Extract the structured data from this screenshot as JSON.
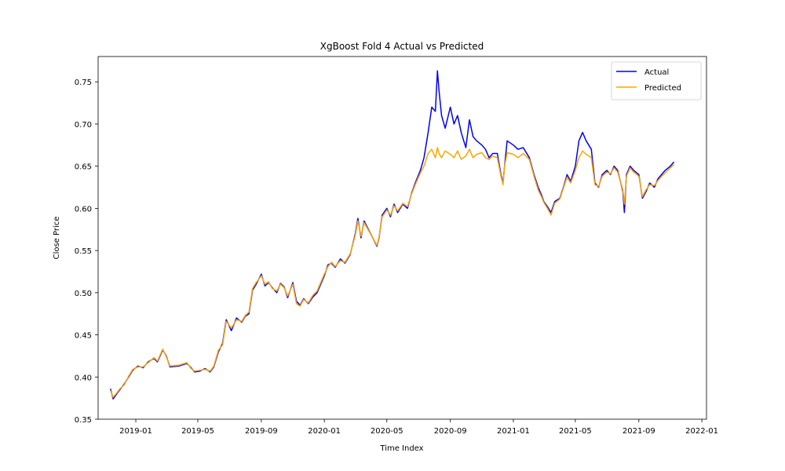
{
  "chart_data": {
    "type": "line",
    "title": "XgBoost Fold 4 Actual vs Predicted",
    "xlabel": "Time Index",
    "ylabel": "Close Price",
    "xlim": [
      "2018-10-20",
      "2022-01-10"
    ],
    "ylim": [
      0.35,
      0.78
    ],
    "x_ticks": [
      "2019-01",
      "2019-05",
      "2019-09",
      "2020-01",
      "2020-05",
      "2020-09",
      "2021-01",
      "2021-05",
      "2021-09",
      "2022-01"
    ],
    "y_ticks": [
      "0.35",
      "0.40",
      "0.45",
      "0.50",
      "0.55",
      "0.60",
      "0.65",
      "0.70",
      "0.75"
    ],
    "grid": false,
    "legend_position": "top-right",
    "series": [
      {
        "name": "Actual",
        "color": "#0000ff",
        "points": [
          [
            "2018-11-13",
            0.386
          ],
          [
            "2018-11-18",
            0.374
          ],
          [
            "2018-11-25",
            0.38
          ],
          [
            "2018-12-01",
            0.385
          ],
          [
            "2018-12-10",
            0.392
          ],
          [
            "2018-12-18",
            0.4
          ],
          [
            "2018-12-26",
            0.408
          ],
          [
            "2019-01-05",
            0.413
          ],
          [
            "2019-01-15",
            0.411
          ],
          [
            "2019-01-25",
            0.418
          ],
          [
            "2019-02-05",
            0.422
          ],
          [
            "2019-02-12",
            0.418
          ],
          [
            "2019-02-22",
            0.432
          ],
          [
            "2019-03-01",
            0.425
          ],
          [
            "2019-03-08",
            0.412
          ],
          [
            "2019-03-25",
            0.413
          ],
          [
            "2019-04-10",
            0.416
          ],
          [
            "2019-04-18",
            0.411
          ],
          [
            "2019-04-25",
            0.406
          ],
          [
            "2019-05-05",
            0.407
          ],
          [
            "2019-05-15",
            0.41
          ],
          [
            "2019-05-25",
            0.406
          ],
          [
            "2019-06-01",
            0.412
          ],
          [
            "2019-06-10",
            0.43
          ],
          [
            "2019-06-18",
            0.44
          ],
          [
            "2019-06-25",
            0.468
          ],
          [
            "2019-07-05",
            0.455
          ],
          [
            "2019-07-15",
            0.47
          ],
          [
            "2019-07-25",
            0.465
          ],
          [
            "2019-08-01",
            0.472
          ],
          [
            "2019-08-08",
            0.475
          ],
          [
            "2019-08-15",
            0.503
          ],
          [
            "2019-08-22",
            0.51
          ],
          [
            "2019-09-01",
            0.522
          ],
          [
            "2019-09-08",
            0.508
          ],
          [
            "2019-09-15",
            0.512
          ],
          [
            "2019-09-22",
            0.506
          ],
          [
            "2019-10-01",
            0.5
          ],
          [
            "2019-10-08",
            0.511
          ],
          [
            "2019-10-15",
            0.507
          ],
          [
            "2019-10-22",
            0.494
          ],
          [
            "2019-11-01",
            0.512
          ],
          [
            "2019-11-08",
            0.49
          ],
          [
            "2019-11-15",
            0.485
          ],
          [
            "2019-11-22",
            0.493
          ],
          [
            "2019-12-01",
            0.487
          ],
          [
            "2019-12-10",
            0.495
          ],
          [
            "2019-12-18",
            0.5
          ],
          [
            "2020-01-01",
            0.52
          ],
          [
            "2020-01-08",
            0.533
          ],
          [
            "2020-01-15",
            0.535
          ],
          [
            "2020-01-22",
            0.53
          ],
          [
            "2020-02-01",
            0.54
          ],
          [
            "2020-02-10",
            0.535
          ],
          [
            "2020-02-20",
            0.545
          ],
          [
            "2020-03-01",
            0.57
          ],
          [
            "2020-03-06",
            0.588
          ],
          [
            "2020-03-12",
            0.565
          ],
          [
            "2020-03-18",
            0.585
          ],
          [
            "2020-04-12",
            0.555
          ],
          [
            "2020-04-16",
            0.565
          ],
          [
            "2020-04-22",
            0.592
          ],
          [
            "2020-05-01",
            0.6
          ],
          [
            "2020-05-08",
            0.59
          ],
          [
            "2020-05-15",
            0.605
          ],
          [
            "2020-05-22",
            0.595
          ],
          [
            "2020-06-01",
            0.605
          ],
          [
            "2020-06-10",
            0.6
          ],
          [
            "2020-06-18",
            0.618
          ],
          [
            "2020-06-25",
            0.63
          ],
          [
            "2020-07-05",
            0.645
          ],
          [
            "2020-07-12",
            0.66
          ],
          [
            "2020-07-20",
            0.69
          ],
          [
            "2020-07-27",
            0.72
          ],
          [
            "2020-08-03",
            0.715
          ],
          [
            "2020-08-07",
            0.763
          ],
          [
            "2020-08-10",
            0.74
          ],
          [
            "2020-08-15",
            0.71
          ],
          [
            "2020-08-22",
            0.695
          ],
          [
            "2020-09-01",
            0.72
          ],
          [
            "2020-09-08",
            0.7
          ],
          [
            "2020-09-15",
            0.71
          ],
          [
            "2020-09-22",
            0.69
          ],
          [
            "2020-10-01",
            0.672
          ],
          [
            "2020-10-08",
            0.705
          ],
          [
            "2020-10-15",
            0.685
          ],
          [
            "2020-10-22",
            0.68
          ],
          [
            "2020-11-01",
            0.675
          ],
          [
            "2020-11-08",
            0.67
          ],
          [
            "2020-11-15",
            0.66
          ],
          [
            "2020-11-22",
            0.665
          ],
          [
            "2020-12-01",
            0.665
          ],
          [
            "2020-12-08",
            0.64
          ],
          [
            "2020-12-12",
            0.63
          ],
          [
            "2020-12-15",
            0.65
          ],
          [
            "2020-12-20",
            0.68
          ],
          [
            "2021-01-01",
            0.675
          ],
          [
            "2021-01-10",
            0.67
          ],
          [
            "2021-01-20",
            0.672
          ],
          [
            "2021-02-01",
            0.66
          ],
          [
            "2021-02-10",
            0.64
          ],
          [
            "2021-02-18",
            0.625
          ],
          [
            "2021-02-25",
            0.615
          ],
          [
            "2021-03-01",
            0.608
          ],
          [
            "2021-03-08",
            0.602
          ],
          [
            "2021-03-15",
            0.595
          ],
          [
            "2021-03-22",
            0.608
          ],
          [
            "2021-04-01",
            0.612
          ],
          [
            "2021-04-08",
            0.625
          ],
          [
            "2021-04-15",
            0.64
          ],
          [
            "2021-04-22",
            0.632
          ],
          [
            "2021-05-01",
            0.65
          ],
          [
            "2021-05-08",
            0.68
          ],
          [
            "2021-05-15",
            0.69
          ],
          [
            "2021-05-22",
            0.68
          ],
          [
            "2021-06-01",
            0.67
          ],
          [
            "2021-06-08",
            0.63
          ],
          [
            "2021-06-15",
            0.625
          ],
          [
            "2021-06-22",
            0.64
          ],
          [
            "2021-07-01",
            0.645
          ],
          [
            "2021-07-08",
            0.64
          ],
          [
            "2021-07-15",
            0.65
          ],
          [
            "2021-07-22",
            0.645
          ],
          [
            "2021-08-01",
            0.62
          ],
          [
            "2021-08-04",
            0.595
          ],
          [
            "2021-08-08",
            0.64
          ],
          [
            "2021-08-15",
            0.65
          ],
          [
            "2021-08-22",
            0.645
          ],
          [
            "2021-09-01",
            0.64
          ],
          [
            "2021-09-08",
            0.612
          ],
          [
            "2021-09-15",
            0.62
          ],
          [
            "2021-09-22",
            0.63
          ],
          [
            "2021-10-01",
            0.625
          ],
          [
            "2021-10-08",
            0.635
          ],
          [
            "2021-10-15",
            0.64
          ],
          [
            "2021-10-22",
            0.645
          ],
          [
            "2021-11-01",
            0.65
          ],
          [
            "2021-11-08",
            0.655
          ]
        ]
      },
      {
        "name": "Predicted",
        "color": "#ffa500",
        "points": [
          [
            "2018-11-13",
            0.384
          ],
          [
            "2018-11-18",
            0.376
          ],
          [
            "2018-11-25",
            0.381
          ],
          [
            "2018-12-01",
            0.386
          ],
          [
            "2018-12-10",
            0.391
          ],
          [
            "2018-12-18",
            0.401
          ],
          [
            "2018-12-26",
            0.409
          ],
          [
            "2019-01-05",
            0.412
          ],
          [
            "2019-01-15",
            0.412
          ],
          [
            "2019-01-25",
            0.417
          ],
          [
            "2019-02-05",
            0.423
          ],
          [
            "2019-02-12",
            0.419
          ],
          [
            "2019-02-22",
            0.433
          ],
          [
            "2019-03-01",
            0.424
          ],
          [
            "2019-03-08",
            0.413
          ],
          [
            "2019-03-25",
            0.414
          ],
          [
            "2019-04-10",
            0.417
          ],
          [
            "2019-04-18",
            0.41
          ],
          [
            "2019-04-25",
            0.407
          ],
          [
            "2019-05-05",
            0.408
          ],
          [
            "2019-05-15",
            0.409
          ],
          [
            "2019-05-25",
            0.407
          ],
          [
            "2019-06-01",
            0.413
          ],
          [
            "2019-06-10",
            0.432
          ],
          [
            "2019-06-18",
            0.438
          ],
          [
            "2019-06-25",
            0.466
          ],
          [
            "2019-07-05",
            0.458
          ],
          [
            "2019-07-15",
            0.468
          ],
          [
            "2019-07-25",
            0.466
          ],
          [
            "2019-08-01",
            0.473
          ],
          [
            "2019-08-08",
            0.477
          ],
          [
            "2019-08-15",
            0.505
          ],
          [
            "2019-08-22",
            0.512
          ],
          [
            "2019-09-01",
            0.52
          ],
          [
            "2019-09-08",
            0.51
          ],
          [
            "2019-09-15",
            0.513
          ],
          [
            "2019-09-22",
            0.505
          ],
          [
            "2019-10-01",
            0.502
          ],
          [
            "2019-10-08",
            0.51
          ],
          [
            "2019-10-15",
            0.506
          ],
          [
            "2019-10-22",
            0.496
          ],
          [
            "2019-11-01",
            0.51
          ],
          [
            "2019-11-08",
            0.487
          ],
          [
            "2019-11-15",
            0.484
          ],
          [
            "2019-11-22",
            0.492
          ],
          [
            "2019-12-01",
            0.488
          ],
          [
            "2019-12-10",
            0.497
          ],
          [
            "2019-12-18",
            0.502
          ],
          [
            "2020-01-01",
            0.522
          ],
          [
            "2020-01-08",
            0.531
          ],
          [
            "2020-01-15",
            0.536
          ],
          [
            "2020-01-22",
            0.531
          ],
          [
            "2020-02-01",
            0.538
          ],
          [
            "2020-02-10",
            0.536
          ],
          [
            "2020-02-20",
            0.546
          ],
          [
            "2020-03-01",
            0.568
          ],
          [
            "2020-03-06",
            0.585
          ],
          [
            "2020-03-12",
            0.567
          ],
          [
            "2020-03-18",
            0.583
          ],
          [
            "2020-04-12",
            0.556
          ],
          [
            "2020-04-16",
            0.566
          ],
          [
            "2020-04-22",
            0.59
          ],
          [
            "2020-05-01",
            0.598
          ],
          [
            "2020-05-08",
            0.592
          ],
          [
            "2020-05-15",
            0.603
          ],
          [
            "2020-05-22",
            0.597
          ],
          [
            "2020-06-01",
            0.606
          ],
          [
            "2020-06-10",
            0.602
          ],
          [
            "2020-06-18",
            0.617
          ],
          [
            "2020-06-25",
            0.628
          ],
          [
            "2020-07-05",
            0.642
          ],
          [
            "2020-07-12",
            0.65
          ],
          [
            "2020-07-20",
            0.665
          ],
          [
            "2020-07-27",
            0.67
          ],
          [
            "2020-08-03",
            0.66
          ],
          [
            "2020-08-07",
            0.672
          ],
          [
            "2020-08-10",
            0.665
          ],
          [
            "2020-08-15",
            0.66
          ],
          [
            "2020-08-22",
            0.668
          ],
          [
            "2020-09-01",
            0.664
          ],
          [
            "2020-09-08",
            0.66
          ],
          [
            "2020-09-15",
            0.668
          ],
          [
            "2020-09-22",
            0.658
          ],
          [
            "2020-10-01",
            0.662
          ],
          [
            "2020-10-08",
            0.67
          ],
          [
            "2020-10-15",
            0.66
          ],
          [
            "2020-10-22",
            0.664
          ],
          [
            "2020-11-01",
            0.666
          ],
          [
            "2020-11-08",
            0.66
          ],
          [
            "2020-11-15",
            0.658
          ],
          [
            "2020-11-22",
            0.662
          ],
          [
            "2020-12-01",
            0.66
          ],
          [
            "2020-12-08",
            0.638
          ],
          [
            "2020-12-12",
            0.628
          ],
          [
            "2020-12-15",
            0.65
          ],
          [
            "2020-12-20",
            0.666
          ],
          [
            "2021-01-01",
            0.664
          ],
          [
            "2021-01-10",
            0.66
          ],
          [
            "2021-01-20",
            0.665
          ],
          [
            "2021-02-01",
            0.658
          ],
          [
            "2021-02-10",
            0.638
          ],
          [
            "2021-02-18",
            0.622
          ],
          [
            "2021-02-25",
            0.613
          ],
          [
            "2021-03-01",
            0.607
          ],
          [
            "2021-03-08",
            0.6
          ],
          [
            "2021-03-15",
            0.592
          ],
          [
            "2021-03-22",
            0.606
          ],
          [
            "2021-04-01",
            0.611
          ],
          [
            "2021-04-08",
            0.624
          ],
          [
            "2021-04-15",
            0.637
          ],
          [
            "2021-04-22",
            0.63
          ],
          [
            "2021-05-01",
            0.645
          ],
          [
            "2021-05-08",
            0.66
          ],
          [
            "2021-05-15",
            0.668
          ],
          [
            "2021-05-22",
            0.664
          ],
          [
            "2021-06-01",
            0.66
          ],
          [
            "2021-06-08",
            0.628
          ],
          [
            "2021-06-15",
            0.626
          ],
          [
            "2021-06-22",
            0.638
          ],
          [
            "2021-07-01",
            0.643
          ],
          [
            "2021-07-08",
            0.641
          ],
          [
            "2021-07-15",
            0.648
          ],
          [
            "2021-07-22",
            0.643
          ],
          [
            "2021-08-01",
            0.622
          ],
          [
            "2021-08-04",
            0.605
          ],
          [
            "2021-08-08",
            0.638
          ],
          [
            "2021-08-15",
            0.648
          ],
          [
            "2021-08-22",
            0.643
          ],
          [
            "2021-09-01",
            0.638
          ],
          [
            "2021-09-08",
            0.614
          ],
          [
            "2021-09-15",
            0.622
          ],
          [
            "2021-09-22",
            0.628
          ],
          [
            "2021-10-01",
            0.627
          ],
          [
            "2021-10-08",
            0.633
          ],
          [
            "2021-10-15",
            0.638
          ],
          [
            "2021-10-22",
            0.642
          ],
          [
            "2021-11-01",
            0.648
          ],
          [
            "2021-11-08",
            0.652
          ]
        ]
      }
    ]
  }
}
